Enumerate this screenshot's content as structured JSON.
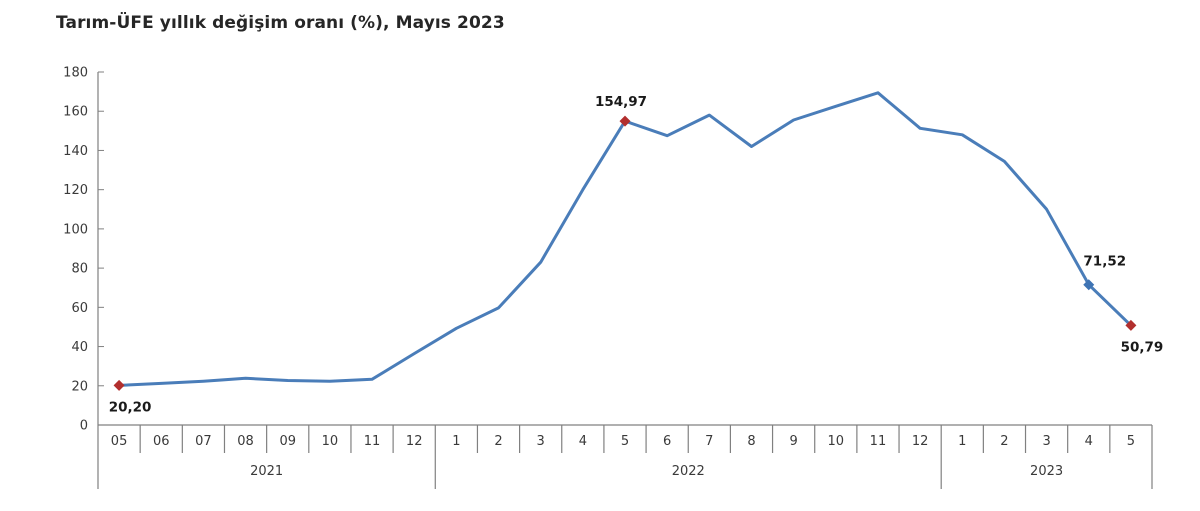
{
  "chart_data": {
    "type": "line",
    "title": "Tarım-ÜFE yıllık değişim oranı (%), Mayıs 2023",
    "xlabel": "",
    "ylabel": "",
    "ylim": [
      0,
      180
    ],
    "y_ticks": [
      0,
      20,
      40,
      60,
      80,
      100,
      120,
      140,
      160,
      180
    ],
    "grid": false,
    "legend_position": "none",
    "categories": [
      "05",
      "06",
      "07",
      "08",
      "09",
      "10",
      "11",
      "12",
      "1",
      "2",
      "3",
      "4",
      "5",
      "6",
      "7",
      "8",
      "9",
      "10",
      "11",
      "12",
      "1",
      "2",
      "3",
      "4",
      "5"
    ],
    "year_groups": [
      {
        "label": "2021",
        "start": 0,
        "count": 8
      },
      {
        "label": "2022",
        "start": 8,
        "count": 12
      },
      {
        "label": "2023",
        "start": 20,
        "count": 5
      }
    ],
    "series": [
      {
        "name": "Tarım-ÜFE yıllık değişim oranı (%)",
        "values": [
          20.2,
          21.2,
          22.3,
          23.8,
          22.7,
          22.3,
          23.3,
          36.4,
          49.3,
          59.7,
          83.0,
          120.0,
          154.97,
          147.5,
          158.0,
          142.0,
          155.5,
          162.5,
          169.4,
          151.3,
          148.0,
          134.4,
          110.0,
          71.52,
          50.79
        ]
      }
    ],
    "annotations": [
      {
        "index": 0,
        "text": "20,20",
        "marker": "red",
        "pos": "below-right"
      },
      {
        "index": 12,
        "text": "154,97",
        "marker": "red",
        "pos": "above"
      },
      {
        "index": 23,
        "text": "71,52",
        "marker": "blue",
        "pos": "above-right"
      },
      {
        "index": 24,
        "text": "50,79",
        "marker": "red",
        "pos": "below-right"
      }
    ],
    "colors": {
      "line": "#4a7db9",
      "marker_red": "#b22f2e",
      "marker_blue": "#3f74b4",
      "axis": "#808080",
      "tick_text": "#3a3a3a",
      "title_text": "#262626",
      "label_text": "#1a1a1a",
      "background": "#ffffff"
    }
  }
}
